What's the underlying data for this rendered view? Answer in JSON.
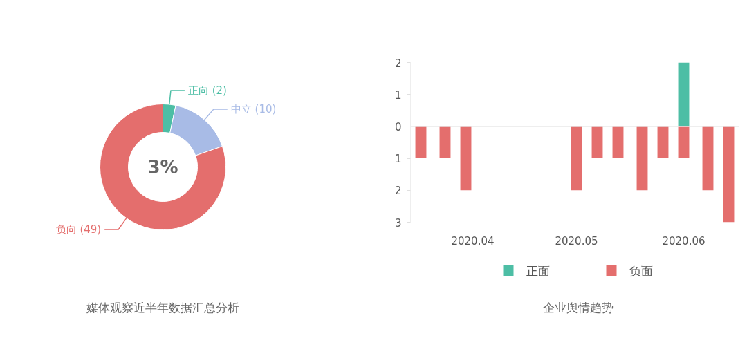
{
  "chart_data": [
    {
      "type": "donut",
      "title": "媒体观察近半年数据汇总分析",
      "categories": [
        "正向",
        "中立",
        "负向"
      ],
      "values": [
        2,
        10,
        49
      ],
      "colors": [
        "#4dbea5",
        "#a8bbe6",
        "#e46e6d"
      ],
      "value_labels": [
        "(2)",
        "(10)",
        "(49)"
      ],
      "annotations": [
        "3%"
      ]
    },
    {
      "type": "bar",
      "title": "企业舆情趋势",
      "x": [
        "2020-03-17",
        "2020-03-24",
        "2020-03-30",
        "2020-05-01",
        "2020-05-07",
        "2020-05-13",
        "2020-05-20",
        "2020-05-26",
        "2020-06-01",
        "2020-06-08",
        "2020-06-14"
      ],
      "series": [
        {
          "name": "正面",
          "color": "#4dbea5",
          "values": [
            null,
            null,
            null,
            null,
            null,
            null,
            null,
            null,
            2,
            null,
            null
          ]
        },
        {
          "name": "负面",
          "color": "#e46e6d",
          "values": [
            -1,
            -1,
            -2,
            -2,
            -1,
            -1,
            -2,
            -1,
            -1,
            -2,
            -3
          ]
        }
      ],
      "stacked": true,
      "xlim": [
        "2020-03-14",
        "2020-06-17"
      ],
      "xticks": [
        {
          "value": "2020-04-01",
          "label": "2020.04"
        },
        {
          "value": "2020-05-01",
          "label": "2020.05"
        },
        {
          "value": "2020-06-01",
          "label": "2020.06"
        }
      ],
      "ylim": [
        -3,
        2
      ],
      "yticks": [
        {
          "value": -3,
          "label": "3"
        },
        {
          "value": -2,
          "label": "2"
        },
        {
          "value": -1,
          "label": "1"
        },
        0,
        1,
        2
      ],
      "ref_lines": [
        {
          "axis": "y",
          "value": 0,
          "color": "#e8e8e8"
        }
      ],
      "legend": "bottom"
    }
  ]
}
